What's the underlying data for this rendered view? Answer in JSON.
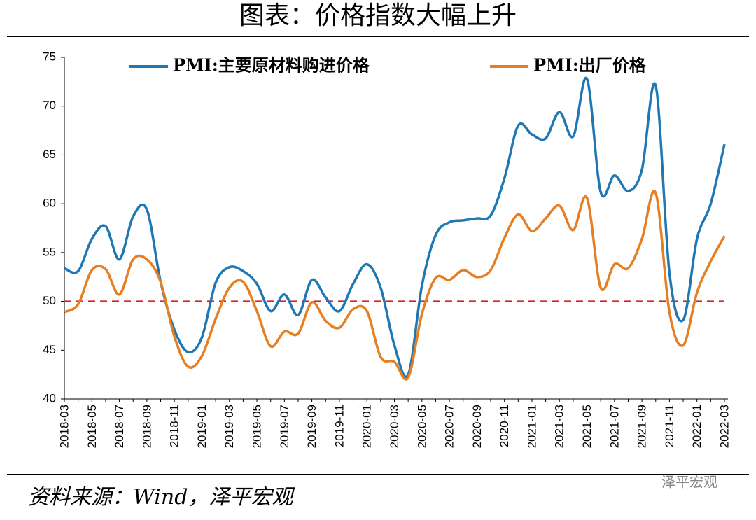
{
  "chart_data": {
    "type": "line",
    "title": "图表：价格指数大幅上升",
    "source": "资料来源：Wind，泽平宏观",
    "watermark": "泽平宏观",
    "categories": [
      "2018-03",
      null,
      "2018-05",
      null,
      "2018-07",
      null,
      "2018-09",
      null,
      "2018-11",
      null,
      "2019-01",
      null,
      "2019-03",
      null,
      "2019-05",
      null,
      "2019-07",
      null,
      "2019-09",
      null,
      "2019-11",
      null,
      "2020-01",
      null,
      "2020-03",
      null,
      "2020-05",
      null,
      "2020-07",
      null,
      "2020-09",
      null,
      "2020-11",
      null,
      "2021-01",
      null,
      "2021-03",
      null,
      "2021-05",
      null,
      "2021-07",
      null,
      "2021-09",
      null,
      "2021-11",
      null,
      "2022-01",
      null,
      "2022-03"
    ],
    "series": [
      {
        "name": "PMI:主要原材料购进价格",
        "color": "#1f77b4",
        "values": [
          53.4,
          53.1,
          56.4,
          57.7,
          54.3,
          58.7,
          59.4,
          52.0,
          47.1,
          44.8,
          46.3,
          51.9,
          53.5,
          53.1,
          51.8,
          49.0,
          50.7,
          48.6,
          52.2,
          50.4,
          49.0,
          51.8,
          53.8,
          51.4,
          45.5,
          42.5,
          51.6,
          56.8,
          58.1,
          58.3,
          58.5,
          58.8,
          62.6,
          68.0,
          67.1,
          66.7,
          69.4,
          66.9,
          72.8,
          61.2,
          62.9,
          61.3,
          63.5,
          72.1,
          52.9,
          48.1,
          56.4,
          60.0,
          66.1
        ]
      },
      {
        "name": "PMI:出厂价格",
        "color": "#e67e22",
        "values": [
          48.9,
          49.7,
          53.2,
          53.3,
          50.7,
          54.3,
          54.3,
          52.0,
          46.4,
          43.3,
          44.4,
          48.2,
          51.4,
          52.0,
          49.0,
          45.4,
          46.9,
          46.7,
          49.9,
          48.0,
          47.3,
          49.2,
          49.0,
          44.3,
          43.8,
          42.2,
          48.7,
          52.4,
          52.2,
          53.2,
          52.5,
          53.2,
          56.5,
          58.9,
          57.2,
          58.5,
          59.8,
          57.3,
          60.6,
          51.4,
          53.8,
          53.4,
          56.4,
          61.1,
          48.9,
          45.5,
          50.9,
          54.1,
          56.7
        ]
      }
    ],
    "reference_line": {
      "value": 50,
      "color": "#e02020"
    },
    "ylim": [
      40,
      75
    ],
    "yticks": [
      40,
      45,
      50,
      55,
      60,
      65,
      70,
      75
    ],
    "legend": "top",
    "grid": false
  }
}
